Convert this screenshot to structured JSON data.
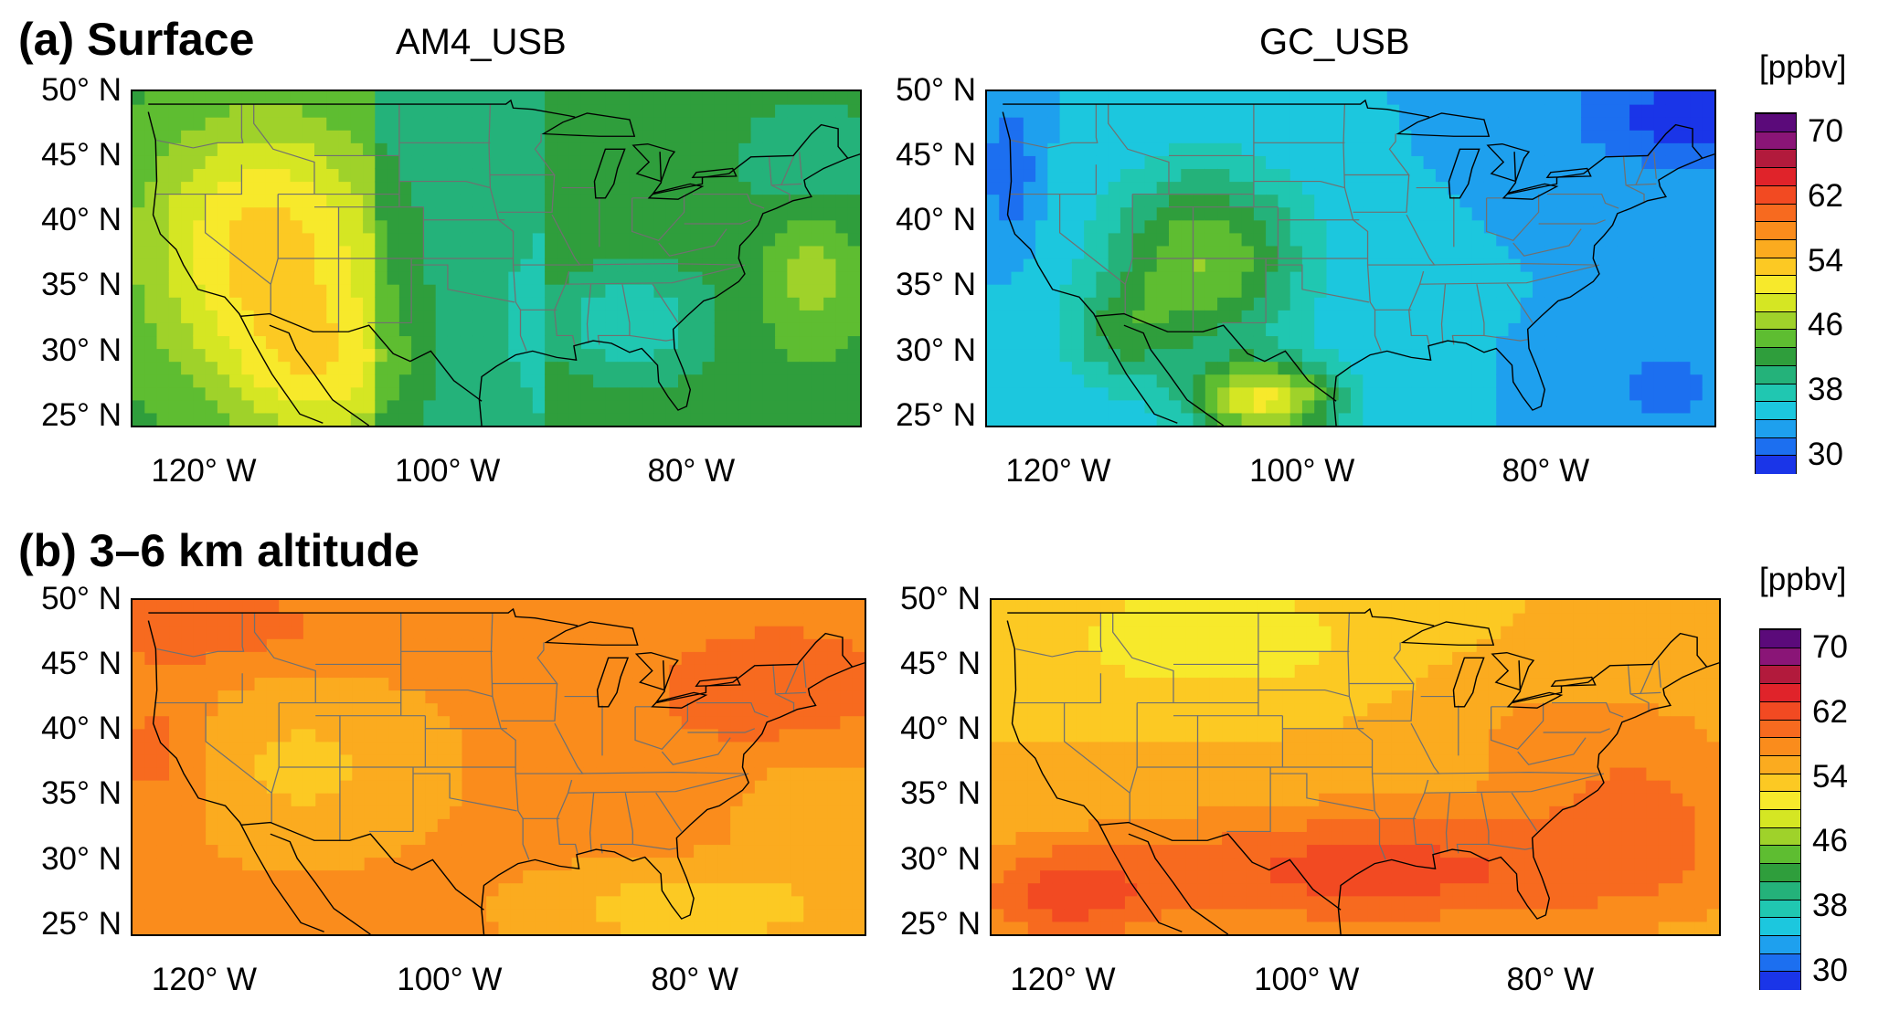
{
  "panels": [
    {
      "title": "(a) Surface",
      "maps": [
        {
          "title": "AM4_USB",
          "field": "am4_surface"
        },
        {
          "title": "GC_USB",
          "field": "gc_surface"
        }
      ]
    },
    {
      "title": "(b) 3–6 km altitude",
      "maps": [
        {
          "title": "",
          "field": "am4_mid"
        },
        {
          "title": "",
          "field": "gc_mid"
        }
      ]
    }
  ],
  "lat_ticks": [
    "50° N",
    "45° N",
    "40° N",
    "35° N",
    "30° N",
    "25° N"
  ],
  "lon_ticks": [
    "120° W",
    "100° W",
    "80° W"
  ],
  "colorbar": {
    "unit": "[ppbv]",
    "labels": [
      "70",
      "62",
      "54",
      "46",
      "38",
      "30"
    ],
    "colors": [
      "#5b0a7a",
      "#8a1577",
      "#b21a3c",
      "#e0232a",
      "#f24a22",
      "#f76a1f",
      "#fa8c1c",
      "#fbab1f",
      "#fcc923",
      "#f7e92b",
      "#d5e623",
      "#9fd22a",
      "#5ebd31",
      "#2f9e3c",
      "#24b27a",
      "#20c7b1",
      "#1cc7de",
      "#1ea0ee",
      "#1c6ff0",
      "#1a35e8"
    ]
  }
}
